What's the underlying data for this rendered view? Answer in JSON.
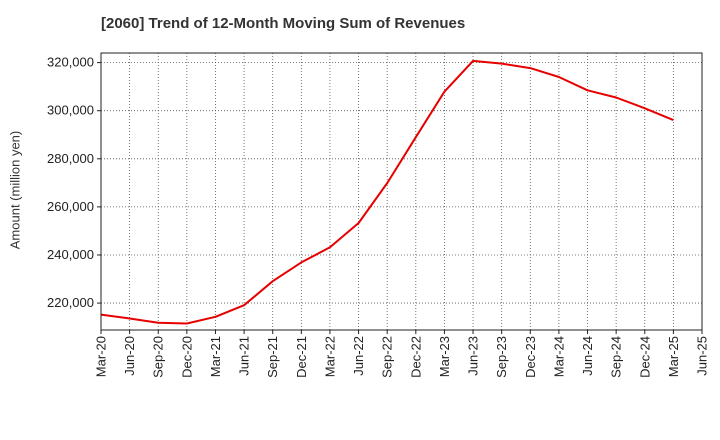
{
  "chart_data": {
    "type": "line",
    "title": "[2060]  Trend of 12-Month Moving Sum of Revenues",
    "xlabel": "",
    "ylabel": "Amount (million yen)",
    "ylim": [
      208800,
      324000
    ],
    "yticks": [
      220000,
      240000,
      260000,
      280000,
      300000,
      320000
    ],
    "ytick_labels": [
      "220,000",
      "240,000",
      "260,000",
      "280,000",
      "300,000",
      "320,000"
    ],
    "categories": [
      "Mar-20",
      "Jun-20",
      "Sep-20",
      "Dec-20",
      "Mar-21",
      "Jun-21",
      "Sep-21",
      "Dec-21",
      "Mar-22",
      "Jun-22",
      "Sep-22",
      "Dec-22",
      "Mar-23",
      "Jun-23",
      "Sep-23",
      "Dec-23",
      "Mar-24",
      "Jun-24",
      "Sep-24",
      "Dec-24",
      "Mar-25",
      "Jun-25"
    ],
    "grid": true,
    "series": [
      {
        "color": "#e60000",
        "values": [
          215200,
          213600,
          211800,
          211500,
          214300,
          219100,
          229100,
          236900,
          243200,
          253300,
          269900,
          289000,
          307900,
          320700,
          319600,
          317700,
          314000,
          308500,
          305500,
          301000,
          296100,
          null
        ]
      }
    ]
  }
}
